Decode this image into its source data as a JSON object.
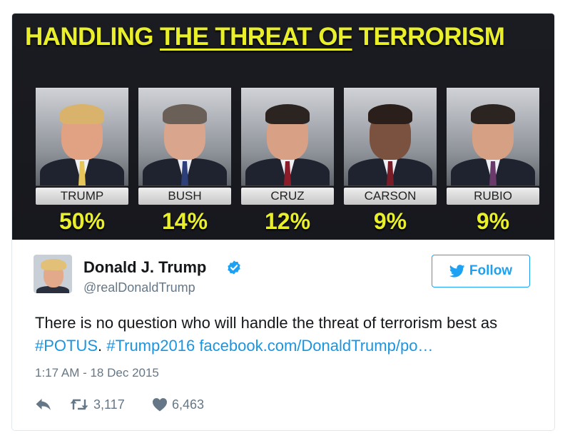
{
  "poll": {
    "title_lead": "HANDLING ",
    "title_underlined": "THE THREAT OF",
    "title_tail": " TERRORISM",
    "candidates": [
      {
        "name": "TRUMP",
        "percent": "50%"
      },
      {
        "name": "BUSH",
        "percent": "14%"
      },
      {
        "name": "CRUZ",
        "percent": "12%"
      },
      {
        "name": "CARSON",
        "percent": "9%"
      },
      {
        "name": "RUBIO",
        "percent": "9%"
      }
    ]
  },
  "tweet": {
    "display_name": "Donald J. Trump",
    "handle": "@realDonaldTrump",
    "follow_label": "Follow",
    "text_plain_1": "There is no question who will handle the threat of terrorism best as ",
    "hashtag_1": "#POTUS",
    "text_plain_2": ". ",
    "hashtag_2": "#Trump2016",
    "text_plain_3": " ",
    "link": "facebook.com/DonaldTrump/po…",
    "timestamp": "1:17 AM - 18 Dec 2015",
    "retweets": "3,117",
    "likes": "6,463"
  },
  "icons": {
    "verified": "verified-badge-icon",
    "follow": "twitter-bird-icon",
    "reply": "reply-icon",
    "retweet": "retweet-icon",
    "like": "heart-icon"
  },
  "colors": {
    "poll_title": "#e9f02a",
    "accent": "#1da1f2",
    "link": "#1b95e0",
    "muted": "#657786",
    "text": "#14171a"
  }
}
